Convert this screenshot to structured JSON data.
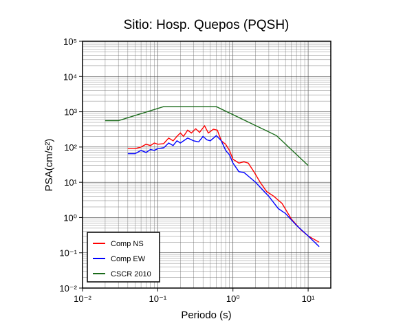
{
  "chart_data": {
    "type": "line",
    "title": "Sitio: Hosp. Quepos (PQSH)",
    "xlabel": "Periodo (s)",
    "ylabel": "PSA(cm/s²)",
    "xscale": "log",
    "yscale": "log",
    "xlim": [
      0.01,
      20
    ],
    "ylim": [
      0.01,
      100000
    ],
    "xticks": [
      {
        "value": 0.01,
        "label": "10⁻²"
      },
      {
        "value": 0.1,
        "label": "10⁻¹"
      },
      {
        "value": 1,
        "label": "10⁰"
      },
      {
        "value": 10,
        "label": "10¹"
      }
    ],
    "yticks": [
      {
        "value": 0.01,
        "label": "10⁻²"
      },
      {
        "value": 0.1,
        "label": "10⁻¹"
      },
      {
        "value": 1,
        "label": "10⁰"
      },
      {
        "value": 10,
        "label": "10¹"
      },
      {
        "value": 100,
        "label": "10²"
      },
      {
        "value": 1000,
        "label": "10³"
      },
      {
        "value": 10000,
        "label": "10⁴"
      },
      {
        "value": 100000,
        "label": "10⁵"
      }
    ],
    "grid": true,
    "minor_grid": true,
    "legend": "lower left",
    "series": [
      {
        "name": "Comp NS",
        "color": "#ff0000",
        "x": [
          0.04,
          0.05,
          0.06,
          0.07,
          0.08,
          0.09,
          0.1,
          0.12,
          0.14,
          0.16,
          0.18,
          0.2,
          0.22,
          0.25,
          0.28,
          0.32,
          0.36,
          0.42,
          0.47,
          0.55,
          0.62,
          0.7,
          0.8,
          0.9,
          1.0,
          1.2,
          1.4,
          1.6,
          1.9,
          2.3,
          2.8,
          3.5,
          4.5,
          6,
          8,
          10,
          14
        ],
        "values": [
          90,
          90,
          100,
          120,
          110,
          130,
          120,
          125,
          180,
          150,
          200,
          250,
          200,
          300,
          250,
          330,
          260,
          400,
          250,
          320,
          300,
          150,
          120,
          80,
          45,
          35,
          38,
          35,
          20,
          10,
          5.5,
          4,
          2.5,
          0.9,
          0.45,
          0.3,
          0.2
        ]
      },
      {
        "name": "Comp EW",
        "color": "#0000ff",
        "x": [
          0.04,
          0.05,
          0.06,
          0.07,
          0.08,
          0.09,
          0.1,
          0.12,
          0.14,
          0.16,
          0.18,
          0.2,
          0.25,
          0.3,
          0.35,
          0.4,
          0.45,
          0.5,
          0.6,
          0.7,
          0.8,
          0.9,
          1.0,
          1.2,
          1.4,
          1.6,
          2.0,
          2.5,
          3.0,
          4.0,
          5,
          7,
          10,
          14
        ],
        "values": [
          65,
          65,
          80,
          70,
          85,
          80,
          90,
          95,
          130,
          110,
          150,
          130,
          180,
          150,
          140,
          200,
          160,
          150,
          210,
          150,
          80,
          60,
          35,
          20,
          19,
          15,
          10,
          6,
          4,
          1.8,
          1.3,
          0.6,
          0.3,
          0.15
        ]
      },
      {
        "name": "CSCR 2010",
        "color": "#1a6b1a",
        "x": [
          0.02,
          0.03,
          0.12,
          0.6,
          3.8,
          10
        ],
        "values": [
          560,
          560,
          1400,
          1400,
          210,
          30
        ]
      }
    ]
  }
}
